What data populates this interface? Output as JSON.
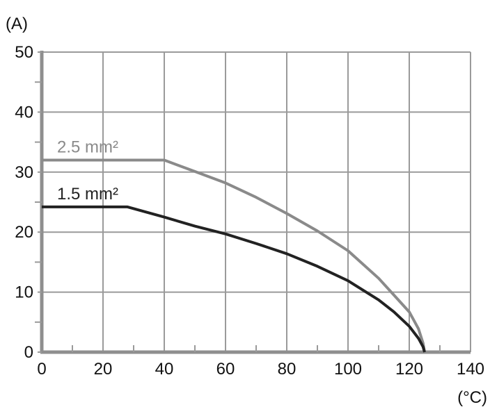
{
  "chart_data": {
    "type": "line",
    "title": "",
    "ylabel": "(A)",
    "xlabel": "(°C)",
    "xlim": [
      0,
      140
    ],
    "ylim": [
      0,
      50
    ],
    "x_ticks": [
      0,
      20,
      40,
      60,
      80,
      100,
      120,
      140
    ],
    "y_ticks": [
      0,
      10,
      20,
      30,
      40,
      50
    ],
    "x_tick_labels": [
      "0",
      "20",
      "40",
      "60",
      "80",
      "100",
      "120",
      "140"
    ],
    "y_tick_labels": [
      "0",
      "10",
      "20",
      "30",
      "40",
      "50"
    ],
    "grid": true,
    "series": [
      {
        "name": "2.5 mm²",
        "color": "#8a8a8a",
        "x": [
          0,
          40,
          50,
          60,
          70,
          80,
          90,
          100,
          110,
          115,
          120,
          123,
          124.5,
          125
        ],
        "y": [
          32,
          32,
          30.1,
          28.2,
          25.8,
          23.1,
          20.2,
          16.9,
          12.3,
          9.5,
          6.7,
          3.9,
          1.5,
          0
        ]
      },
      {
        "name": "1.5 mm²",
        "color": "#222222",
        "x": [
          0,
          28,
          40,
          50,
          60,
          70,
          80,
          90,
          100,
          110,
          115,
          120,
          123,
          124.5,
          125
        ],
        "y": [
          24.2,
          24.2,
          22.5,
          21.0,
          19.7,
          18.1,
          16.4,
          14.3,
          11.9,
          8.7,
          6.7,
          4.3,
          2.3,
          0.9,
          0
        ]
      }
    ]
  }
}
